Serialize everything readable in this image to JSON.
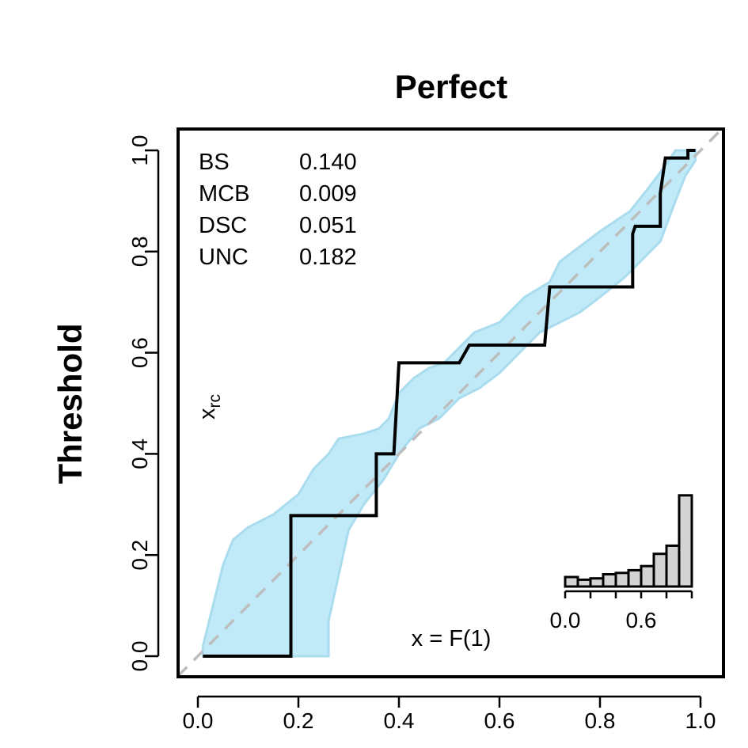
{
  "chart_data": {
    "type": "line",
    "title": "Perfect",
    "xlabel": "",
    "ylabel": "Threshold",
    "xlim": [
      0,
      1
    ],
    "ylim": [
      0,
      1
    ],
    "x_ticks": [
      "0.0",
      "0.2",
      "0.4",
      "0.6",
      "0.8",
      "1.0"
    ],
    "y_ticks": [
      "0.0",
      "0.2",
      "0.4",
      "0.6",
      "0.8",
      "1.0"
    ],
    "grid": false,
    "colors": {
      "band_fill": "#c1eaf8",
      "band_edge": "#a9dcee",
      "step_line": "#000000",
      "diagonal": "#bdbdbd",
      "hist_bar": "#d3d3d3"
    },
    "stats": [
      {
        "label": "BS",
        "value": "0.140"
      },
      {
        "label": "MCB",
        "value": "0.009"
      },
      {
        "label": "DSC",
        "value": "0.051"
      },
      {
        "label": "UNC",
        "value": "0.182"
      }
    ],
    "annotations": {
      "curve_label": "x",
      "curve_label_sub": "rc",
      "equation": "x = F(1)"
    },
    "diagonal": [
      [
        0,
        0
      ],
      [
        1,
        1
      ]
    ],
    "step_curve": [
      [
        0.01,
        0.0
      ],
      [
        0.185,
        0.0
      ],
      [
        0.185,
        0.278
      ],
      [
        0.355,
        0.278
      ],
      [
        0.355,
        0.4
      ],
      [
        0.39,
        0.4
      ],
      [
        0.4,
        0.58
      ],
      [
        0.52,
        0.58
      ],
      [
        0.54,
        0.615
      ],
      [
        0.69,
        0.615
      ],
      [
        0.7,
        0.73
      ],
      [
        0.865,
        0.73
      ],
      [
        0.865,
        0.835
      ],
      [
        0.87,
        0.85
      ],
      [
        0.92,
        0.85
      ],
      [
        0.92,
        0.915
      ],
      [
        0.93,
        0.985
      ],
      [
        0.975,
        0.985
      ],
      [
        0.975,
        1.0
      ],
      [
        0.99,
        1.0
      ]
    ],
    "band_upper": [
      [
        0.01,
        0.02
      ],
      [
        0.03,
        0.1
      ],
      [
        0.05,
        0.18
      ],
      [
        0.07,
        0.23
      ],
      [
        0.1,
        0.255
      ],
      [
        0.15,
        0.28
      ],
      [
        0.2,
        0.32
      ],
      [
        0.23,
        0.37
      ],
      [
        0.26,
        0.4
      ],
      [
        0.28,
        0.43
      ],
      [
        0.33,
        0.44
      ],
      [
        0.36,
        0.45
      ],
      [
        0.38,
        0.47
      ],
      [
        0.4,
        0.52
      ],
      [
        0.43,
        0.55
      ],
      [
        0.46,
        0.57
      ],
      [
        0.49,
        0.58
      ],
      [
        0.52,
        0.61
      ],
      [
        0.55,
        0.64
      ],
      [
        0.6,
        0.66
      ],
      [
        0.65,
        0.71
      ],
      [
        0.7,
        0.74
      ],
      [
        0.72,
        0.78
      ],
      [
        0.76,
        0.81
      ],
      [
        0.8,
        0.84
      ],
      [
        0.86,
        0.88
      ],
      [
        0.9,
        0.93
      ],
      [
        0.93,
        0.97
      ],
      [
        0.95,
        1.0
      ],
      [
        0.99,
        1.0
      ]
    ],
    "band_lower": [
      [
        0.99,
        0.98
      ],
      [
        0.97,
        0.95
      ],
      [
        0.95,
        0.9
      ],
      [
        0.92,
        0.82
      ],
      [
        0.88,
        0.78
      ],
      [
        0.85,
        0.75
      ],
      [
        0.8,
        0.71
      ],
      [
        0.76,
        0.68
      ],
      [
        0.72,
        0.66
      ],
      [
        0.68,
        0.64
      ],
      [
        0.64,
        0.6
      ],
      [
        0.6,
        0.56
      ],
      [
        0.56,
        0.53
      ],
      [
        0.52,
        0.51
      ],
      [
        0.48,
        0.47
      ],
      [
        0.44,
        0.45
      ],
      [
        0.4,
        0.4
      ],
      [
        0.37,
        0.35
      ],
      [
        0.33,
        0.3
      ],
      [
        0.3,
        0.25
      ],
      [
        0.28,
        0.16
      ],
      [
        0.26,
        0.07
      ],
      [
        0.26,
        0.0
      ],
      [
        0.01,
        0.0
      ]
    ],
    "inset_histogram": {
      "x_ticks": [
        "0.0",
        "0.6"
      ],
      "x_tick_values": [
        0.0,
        0.6
      ],
      "bin_edges": [
        0.0,
        0.1,
        0.2,
        0.3,
        0.4,
        0.5,
        0.6,
        0.7,
        0.8,
        0.9,
        1.0
      ],
      "heights": [
        0.07,
        0.05,
        0.06,
        0.09,
        0.1,
        0.12,
        0.15,
        0.24,
        0.3,
        0.67
      ]
    }
  }
}
